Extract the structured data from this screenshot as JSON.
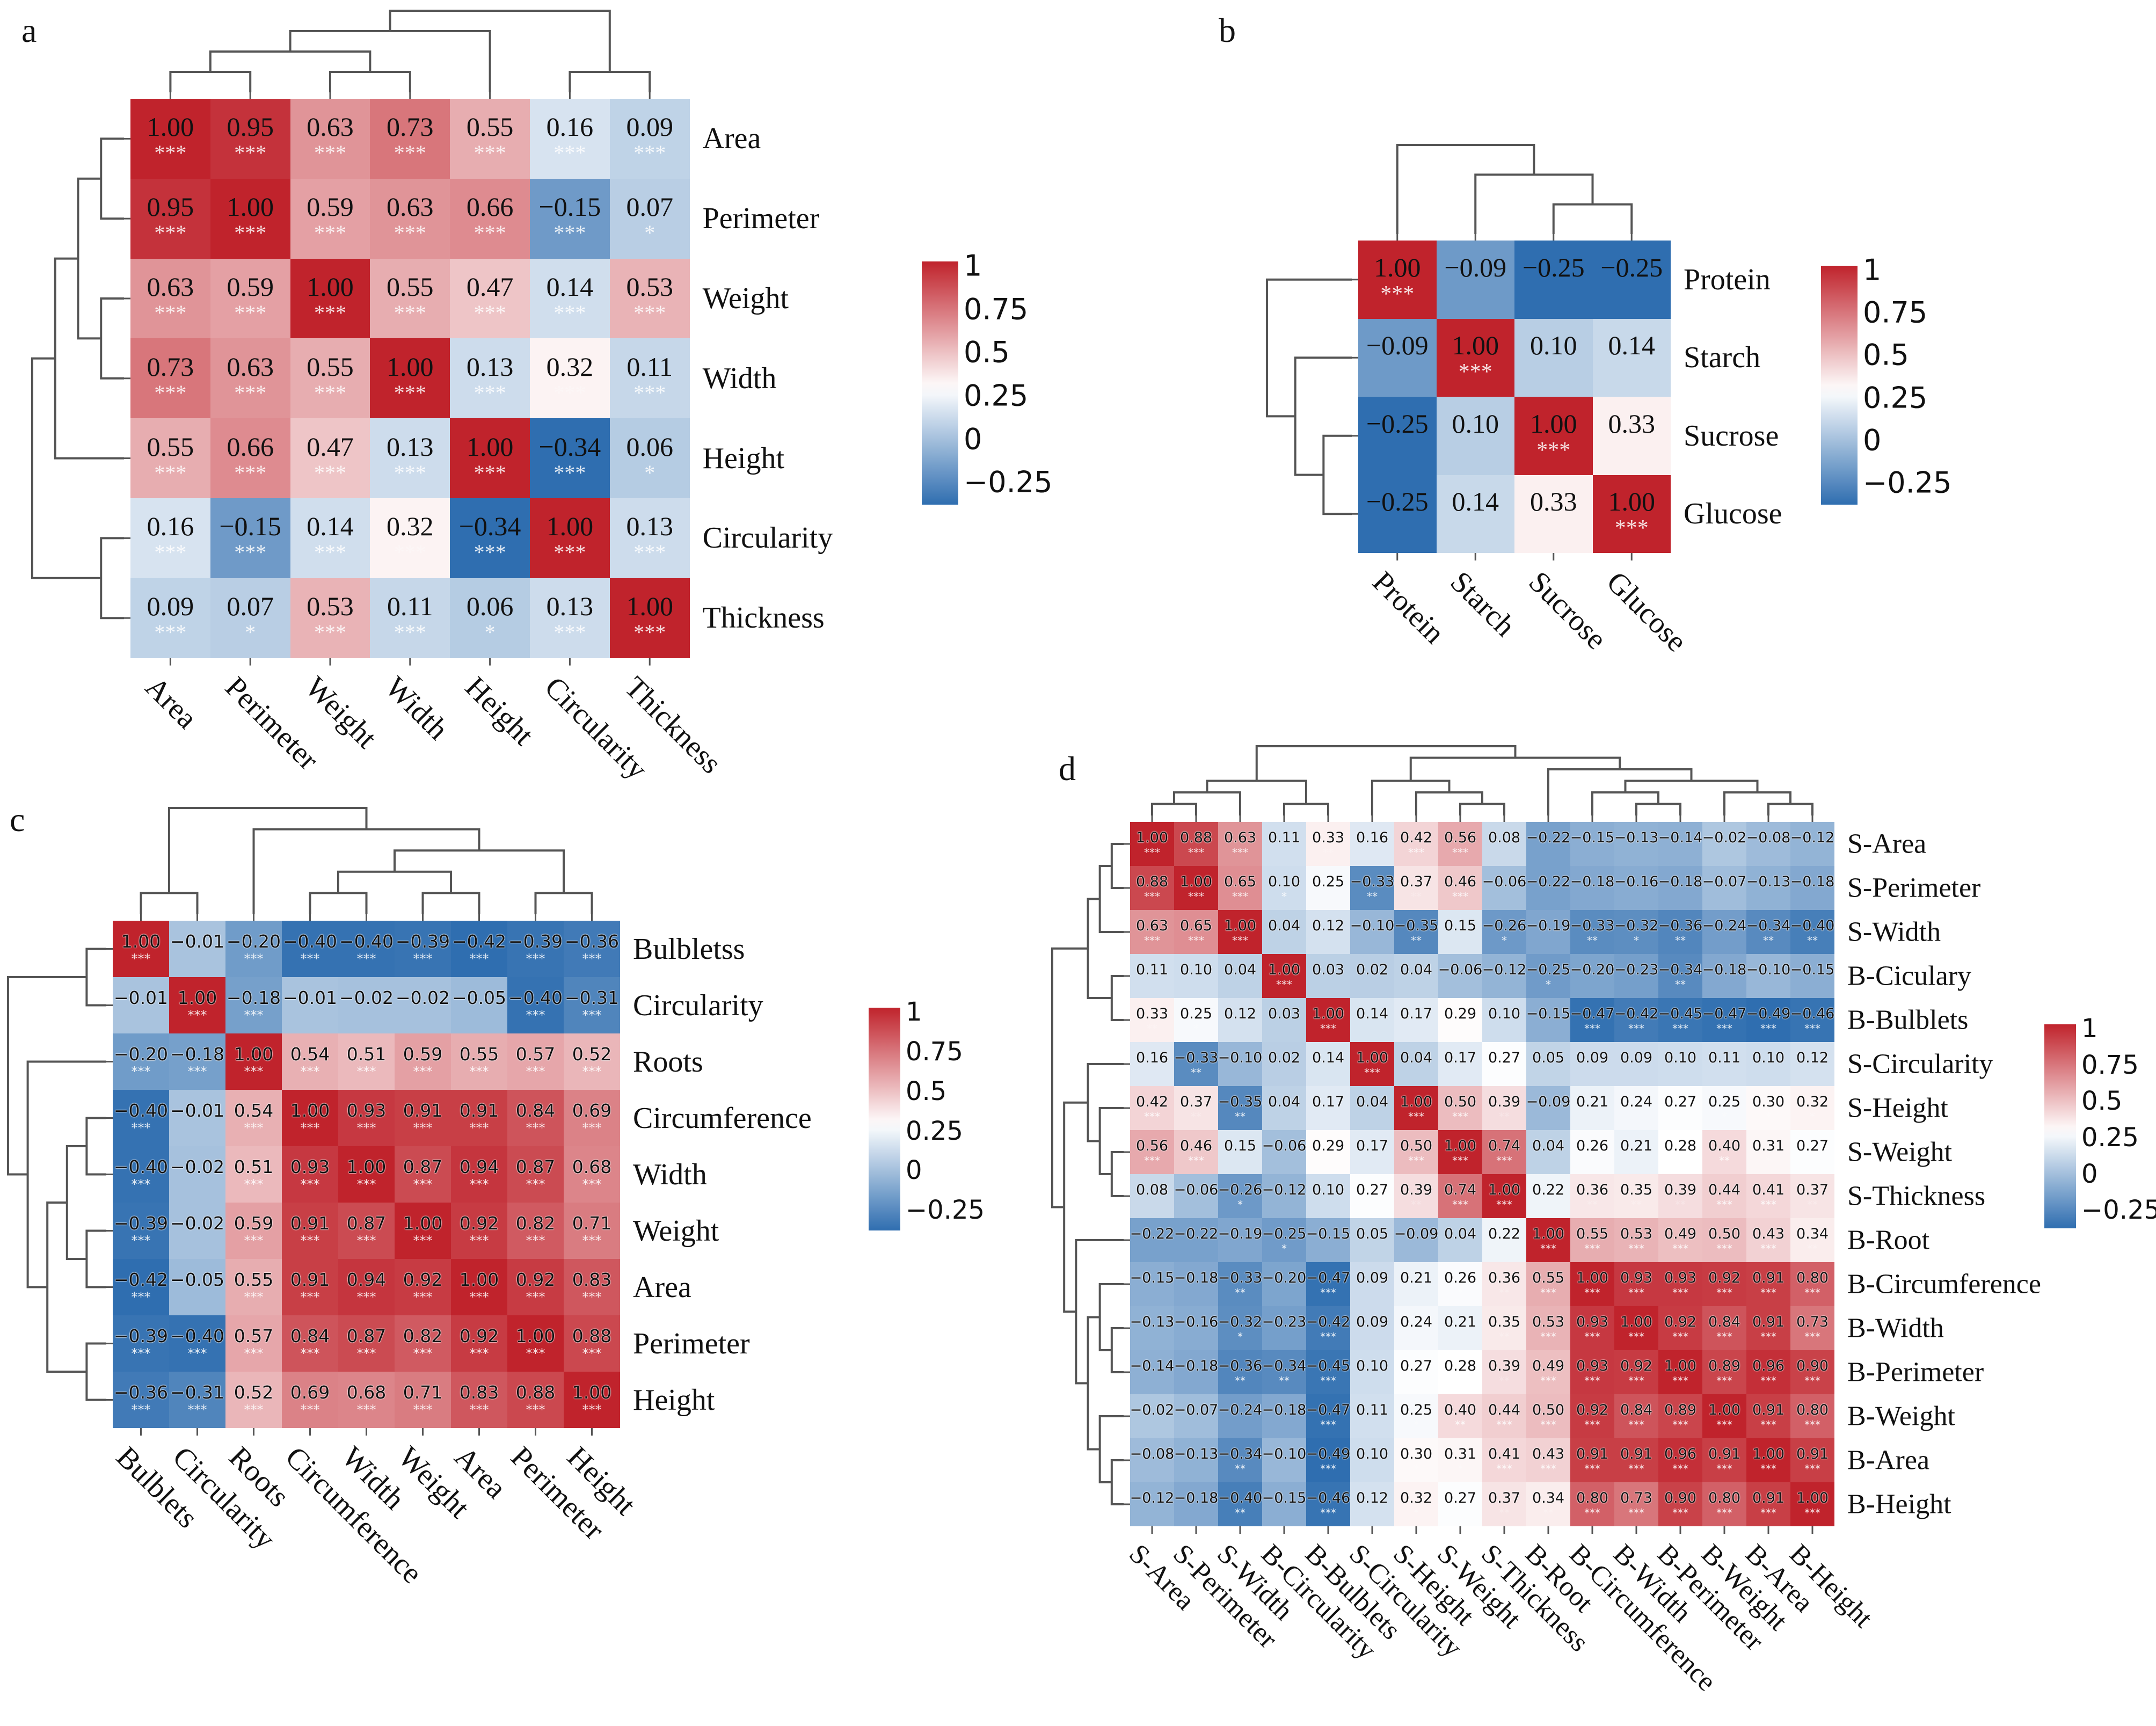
{
  "colors": {
    "positive": "#c0232c",
    "neutral": "#ffffff",
    "negative": "#2f6eb0",
    "stars": "#ffffff"
  },
  "chart_data": [
    {
      "panel": "a",
      "type": "heatmap",
      "row_labels": [
        "Area",
        "Perimeter",
        "Weight",
        "Width",
        "Height",
        "Circularity",
        "Thickness"
      ],
      "col_labels": [
        "Area",
        "Perimeter",
        "Weight",
        "Width",
        "Height",
        "Circularity",
        "Thickness"
      ],
      "values": [
        [
          1.0,
          0.95,
          0.63,
          0.73,
          0.55,
          0.16,
          0.09
        ],
        [
          0.95,
          1.0,
          0.59,
          0.63,
          0.66,
          -0.15,
          0.07
        ],
        [
          0.63,
          0.59,
          1.0,
          0.55,
          0.47,
          0.14,
          0.53
        ],
        [
          0.73,
          0.63,
          0.55,
          1.0,
          0.13,
          0.32,
          0.11
        ],
        [
          0.55,
          0.66,
          0.47,
          0.13,
          1.0,
          -0.34,
          0.06
        ],
        [
          0.16,
          -0.15,
          0.14,
          0.32,
          -0.34,
          1.0,
          0.13
        ],
        [
          0.09,
          0.07,
          0.53,
          0.11,
          0.06,
          0.13,
          1.0
        ]
      ],
      "stars": [
        "3333333",
        "3333331",
        "3333333",
        "3333333",
        "3333331",
        "3333333",
        "3133133"
      ],
      "colorbar_ticks": [
        "1",
        "0.75",
        "0.5",
        "0.25",
        "0",
        "−0.25"
      ],
      "colorbar_values": [
        1,
        0.75,
        0.5,
        0.25,
        0,
        -0.25
      ]
    },
    {
      "panel": "b",
      "type": "heatmap",
      "row_labels": [
        "Protein",
        "Starch",
        "Sucrose",
        "Glucose"
      ],
      "col_labels": [
        "Protein",
        "Starch",
        "Sucrose",
        "Glucose"
      ],
      "values": [
        [
          1.0,
          -0.09,
          -0.25,
          -0.25
        ],
        [
          -0.09,
          1.0,
          0.1,
          0.14
        ],
        [
          -0.25,
          0.1,
          1.0,
          0.33
        ],
        [
          -0.25,
          0.14,
          0.33,
          1.0
        ]
      ],
      "stars": [
        "3000",
        "0300",
        "0030",
        "0003"
      ],
      "colorbar_ticks": [
        "1",
        "0.75",
        "0.5",
        "0.25",
        "0",
        "−0.25"
      ],
      "colorbar_values": [
        1,
        0.75,
        0.5,
        0.25,
        0,
        -0.25
      ]
    },
    {
      "panel": "c",
      "type": "heatmap",
      "row_labels": [
        "Bulbletss",
        "Circularity",
        "Roots",
        "Circumference",
        "Width",
        "Weight",
        "Area",
        "Perimeter",
        "Height"
      ],
      "col_labels": [
        "Bulblets",
        "Circularity",
        "Roots",
        "Circumference",
        "Width",
        "Weight",
        "Area",
        "Perimeter",
        "Height"
      ],
      "values": [
        [
          1.0,
          -0.01,
          -0.2,
          -0.4,
          -0.4,
          -0.39,
          -0.42,
          -0.39,
          -0.36
        ],
        [
          -0.01,
          1.0,
          -0.18,
          -0.01,
          -0.02,
          -0.02,
          -0.05,
          -0.4,
          -0.31
        ],
        [
          -0.2,
          -0.18,
          1.0,
          0.54,
          0.51,
          0.59,
          0.55,
          0.57,
          0.52
        ],
        [
          -0.4,
          -0.01,
          0.54,
          1.0,
          0.93,
          0.91,
          0.91,
          0.84,
          0.69
        ],
        [
          -0.4,
          -0.02,
          0.51,
          0.93,
          1.0,
          0.87,
          0.94,
          0.87,
          0.68
        ],
        [
          -0.39,
          -0.02,
          0.59,
          0.91,
          0.87,
          1.0,
          0.92,
          0.82,
          0.71
        ],
        [
          -0.42,
          -0.05,
          0.55,
          0.91,
          0.94,
          0.92,
          1.0,
          0.92,
          0.83
        ],
        [
          -0.39,
          -0.4,
          0.57,
          0.84,
          0.87,
          0.82,
          0.92,
          1.0,
          0.88
        ],
        [
          -0.36,
          -0.31,
          0.52,
          0.69,
          0.68,
          0.71,
          0.83,
          0.88,
          1.0
        ]
      ],
      "stars": [
        "303333333",
        "033000033",
        "333333333",
        "303333333",
        "303333333",
        "303333333",
        "303333333",
        "333333333",
        "333333333"
      ],
      "colorbar_ticks": [
        "1",
        "0.75",
        "0.5",
        "0.25",
        "0",
        "−0.25"
      ],
      "colorbar_values": [
        1,
        0.75,
        0.5,
        0.25,
        0,
        -0.25
      ]
    },
    {
      "panel": "d",
      "type": "heatmap",
      "row_labels": [
        "S-Area",
        "S-Perimeter",
        "S-Width",
        "B-Ciculary",
        "B-Bulblets",
        "S-Circularity",
        "S-Height",
        "S-Weight",
        "S-Thickness",
        "B-Root",
        "B-Circumference",
        "B-Width",
        "B-Perimeter",
        "B-Weight",
        "B-Area",
        "B-Height"
      ],
      "col_labels": [
        "S-Area",
        "S-Perimeter",
        "S-Width",
        "B-Circularity",
        "B-Bulblets",
        "S-Circularity",
        "S-Height",
        "S-Weight",
        "S-Thickness",
        "B-Root",
        "B-Circumference",
        "B-Width",
        "B-Perimeter",
        "B-Weight",
        "B-Area",
        "B-Height"
      ],
      "values": [
        [
          1.0,
          0.88,
          0.63,
          0.11,
          0.33,
          0.16,
          0.42,
          0.56,
          0.08,
          -0.22,
          -0.15,
          -0.13,
          -0.14,
          -0.02,
          -0.08,
          -0.12
        ],
        [
          0.88,
          1.0,
          0.65,
          0.1,
          0.25,
          -0.33,
          0.37,
          0.46,
          -0.06,
          -0.22,
          -0.18,
          -0.16,
          -0.18,
          -0.07,
          -0.13,
          -0.18
        ],
        [
          0.63,
          0.65,
          1.0,
          0.04,
          0.12,
          -0.1,
          -0.35,
          0.15,
          -0.26,
          -0.19,
          -0.33,
          -0.32,
          -0.36,
          -0.24,
          -0.34,
          -0.4
        ],
        [
          0.11,
          0.1,
          0.04,
          1.0,
          0.03,
          0.02,
          0.04,
          -0.06,
          -0.12,
          -0.25,
          -0.2,
          -0.23,
          -0.34,
          -0.18,
          -0.1,
          -0.15
        ],
        [
          0.33,
          0.25,
          0.12,
          0.03,
          1.0,
          0.14,
          0.17,
          0.29,
          0.1,
          -0.15,
          -0.47,
          -0.42,
          -0.45,
          -0.47,
          -0.49,
          -0.46
        ],
        [
          0.16,
          -0.33,
          -0.1,
          0.02,
          0.14,
          1.0,
          0.04,
          0.17,
          0.27,
          0.05,
          0.09,
          0.09,
          0.1,
          0.11,
          0.1,
          0.12
        ],
        [
          0.42,
          0.37,
          -0.35,
          0.04,
          0.17,
          0.04,
          1.0,
          0.5,
          0.39,
          -0.09,
          0.21,
          0.24,
          0.27,
          0.25,
          0.3,
          0.32
        ],
        [
          0.56,
          0.46,
          0.15,
          -0.06,
          0.29,
          0.17,
          0.5,
          1.0,
          0.74,
          0.04,
          0.26,
          0.21,
          0.28,
          0.4,
          0.31,
          0.27
        ],
        [
          0.08,
          -0.06,
          -0.26,
          -0.12,
          0.1,
          0.27,
          0.39,
          0.74,
          1.0,
          0.22,
          0.36,
          0.35,
          0.39,
          0.44,
          0.41,
          0.37
        ],
        [
          -0.22,
          -0.22,
          -0.19,
          -0.25,
          -0.15,
          0.05,
          -0.09,
          0.04,
          0.22,
          1.0,
          0.55,
          0.53,
          0.49,
          0.5,
          0.43,
          0.34
        ],
        [
          -0.15,
          -0.18,
          -0.33,
          -0.2,
          -0.47,
          0.09,
          0.21,
          0.26,
          0.36,
          0.55,
          1.0,
          0.93,
          0.93,
          0.92,
          0.91,
          0.8
        ],
        [
          -0.13,
          -0.16,
          -0.32,
          -0.23,
          -0.42,
          0.09,
          0.24,
          0.21,
          0.35,
          0.53,
          0.93,
          1.0,
          0.92,
          0.84,
          0.91,
          0.73
        ],
        [
          -0.14,
          -0.18,
          -0.36,
          -0.34,
          -0.45,
          0.1,
          0.27,
          0.28,
          0.39,
          0.49,
          0.93,
          0.92,
          1.0,
          0.89,
          0.96,
          0.9
        ],
        [
          -0.02,
          -0.07,
          -0.24,
          -0.18,
          -0.47,
          0.11,
          0.25,
          0.4,
          0.44,
          0.5,
          0.92,
          0.84,
          0.89,
          1.0,
          0.91,
          0.8
        ],
        [
          -0.08,
          -0.13,
          -0.34,
          -0.1,
          -0.49,
          0.1,
          0.3,
          0.31,
          0.41,
          0.43,
          0.91,
          0.91,
          0.96,
          0.91,
          1.0,
          0.91
        ],
        [
          -0.12,
          -0.18,
          -0.4,
          -0.15,
          -0.46,
          0.12,
          0.32,
          0.27,
          0.37,
          0.34,
          0.8,
          0.73,
          0.9,
          0.8,
          0.91,
          1.0
        ]
      ],
      "stars": [
        "3330203300000000",
        "3331022300000000",
        "3330002010212022",
        "0003000001002000",
        "2100300100333333",
        "0200030010000000",
        "3220003320001111",
        "3300103330101211",
        "0010012330222332",
        "0001000003333332",
        "0020300123333333",
        "0010300023333333",
        "0022301123333333",
        "0000301233333333",
        "0020301133333333",
        "0020301122333333"
      ],
      "colorbar_ticks": [
        "1",
        "0.75",
        "0.5",
        "0.25",
        "0",
        "−0.25"
      ],
      "colorbar_values": [
        1,
        0.75,
        0.5,
        0.25,
        0,
        -0.25
      ]
    }
  ]
}
